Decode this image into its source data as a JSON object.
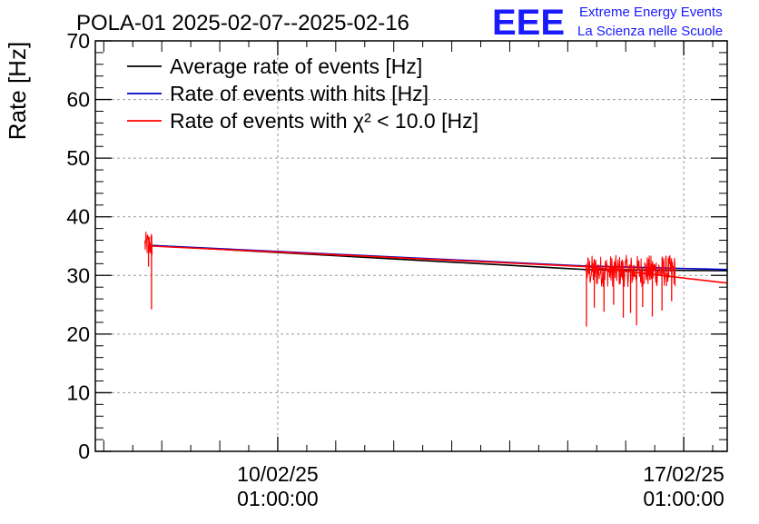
{
  "page_title": "POLA-01 2025-02-07--2025-02-16",
  "brand": {
    "logo_text": "EEE",
    "line1": "Extreme Energy Events",
    "line2": "La Scienza nelle Scuole",
    "color": "#1a1aff"
  },
  "chart_data": {
    "type": "line",
    "title": "POLA-01 2025-02-07--2025-02-16",
    "ylabel": "Rate [Hz]",
    "xlabel": "",
    "ylim": [
      0,
      70
    ],
    "xlim": [
      "2025-02-06T21:30:00",
      "2025-02-17T19:00:00"
    ],
    "y_ticks": [
      0,
      10,
      20,
      30,
      40,
      50,
      60,
      70
    ],
    "x_ticks": [
      {
        "value": "2025-02-10T01:00:00",
        "label_line1": "10/02/25",
        "label_line2": "01:00:00"
      },
      {
        "value": "2025-02-17T01:00:00",
        "label_line1": "17/02/25",
        "label_line2": "01:00:00"
      }
    ],
    "grid": true,
    "legend_position": "top-left",
    "series": [
      {
        "name": "Average rate of events [Hz]",
        "color": "#000000",
        "points": [
          [
            "2025-02-07T21:00:00",
            35.1
          ],
          [
            "2025-02-15T08:30:00",
            31.0
          ],
          [
            "2025-02-17T19:00:00",
            30.8
          ]
        ]
      },
      {
        "name": "Rate of events with hits [Hz]",
        "color": "#0000cc",
        "points": [
          [
            "2025-02-07T21:00:00",
            35.1
          ],
          [
            "2025-02-15T08:30:00",
            31.6
          ],
          [
            "2025-02-17T19:00:00",
            31.0
          ]
        ]
      },
      {
        "name": "Rate of events with χ² < 10.0 [Hz]",
        "color": "#ff0000",
        "points": [
          [
            "2025-02-07T21:00:00",
            35.0
          ],
          [
            "2025-02-15T08:30:00",
            31.5
          ],
          [
            "2025-02-17T19:00:00",
            28.7
          ]
        ]
      }
    ],
    "data_bursts": [
      {
        "start": "2025-02-07T18:00:00",
        "end": "2025-02-07T21:00:00",
        "typical_low": 33.0,
        "typical_high": 37.5,
        "dips": [
          {
            "time": "2025-02-07T19:30:00",
            "value": 31.5
          },
          {
            "time": "2025-02-07T20:45:00",
            "value": 24.2
          }
        ]
      },
      {
        "start": "2025-02-15T08:30:00",
        "end": "2025-02-16T21:30:00",
        "typical_low": 28.0,
        "typical_high": 33.5,
        "dips": [
          {
            "time": "2025-02-15T08:45:00",
            "value": 21.3
          },
          {
            "time": "2025-02-15T12:00:00",
            "value": 24.5
          },
          {
            "time": "2025-02-15T16:00:00",
            "value": 23.8
          },
          {
            "time": "2025-02-15T20:00:00",
            "value": 25.0
          },
          {
            "time": "2025-02-16T00:00:00",
            "value": 22.8
          },
          {
            "time": "2025-02-16T03:00:00",
            "value": 23.6
          },
          {
            "time": "2025-02-16T05:30:00",
            "value": 21.5
          },
          {
            "time": "2025-02-16T08:00:00",
            "value": 24.6
          },
          {
            "time": "2025-02-16T12:00:00",
            "value": 23.0
          },
          {
            "time": "2025-02-16T16:00:00",
            "value": 24.0
          },
          {
            "time": "2025-02-16T20:00:00",
            "value": 25.6
          }
        ]
      }
    ]
  }
}
